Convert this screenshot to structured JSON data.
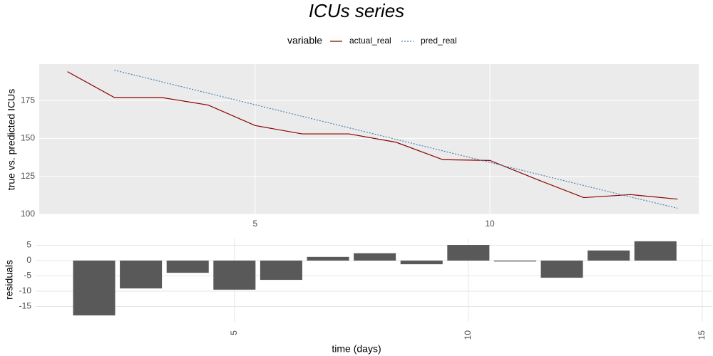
{
  "chart_data": [
    {
      "type": "line",
      "title": "ICUs series",
      "legend_title": "variable",
      "ylabel": "true vs. predicted ICUs",
      "x": [
        1,
        2,
        3,
        4,
        5,
        6,
        7,
        8,
        9,
        10,
        11,
        12,
        13,
        14
      ],
      "series": [
        {
          "name": "actual_real",
          "color": "#8b0000",
          "dash": "solid",
          "values": [
            194,
            177,
            177,
            172,
            158.5,
            153,
            153,
            147.5,
            136,
            135.5,
            123,
            111,
            113,
            110
          ]
        },
        {
          "name": "pred_real",
          "color": "#4682b4",
          "dash": "dotted",
          "values": [
            null,
            195,
            187.4,
            179.8,
            172.2,
            164.6,
            157,
            149.4,
            141.8,
            134.2,
            126.6,
            119,
            111.4,
            104
          ]
        }
      ],
      "xlim": [
        0.4,
        14.45
      ],
      "xticks": [
        5,
        10
      ],
      "ylim": [
        100,
        199
      ],
      "yticks": [
        100,
        125,
        150,
        175
      ],
      "grid": true
    },
    {
      "type": "bar",
      "xlabel": "time (days)",
      "ylabel": "residuals",
      "color": "#595959",
      "x": [
        2,
        3,
        4,
        5,
        6,
        7,
        8,
        9,
        10,
        11,
        12,
        13,
        14
      ],
      "values": [
        -17.9,
        -9.1,
        -4,
        -9.5,
        -6.3,
        1.2,
        2.4,
        -1.2,
        5.1,
        -0.3,
        -5.6,
        3.3,
        6.3
      ],
      "xlim": [
        0.75,
        15.2
      ],
      "xticks": [
        5,
        10,
        15
      ],
      "ylim": [
        -20,
        7.2
      ],
      "yticks": [
        -15,
        -10,
        -5,
        0,
        5
      ],
      "grid": true
    }
  ]
}
